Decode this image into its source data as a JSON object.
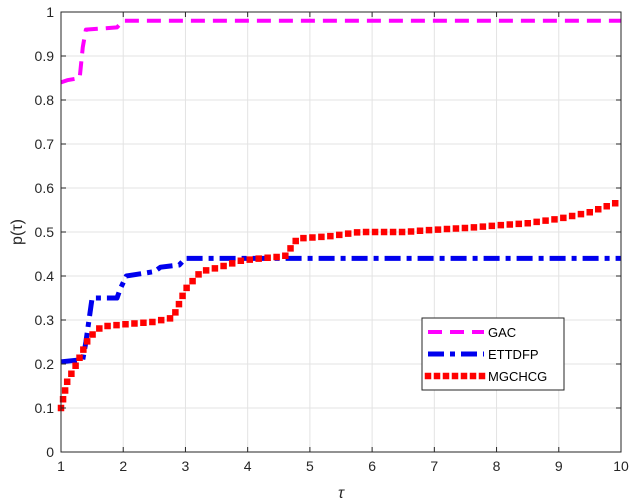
{
  "chart_data": {
    "type": "line",
    "xlabel": "τ",
    "ylabel": "p(τ)",
    "xlim": [
      1,
      10
    ],
    "ylim": [
      0,
      1
    ],
    "xticks": [
      1,
      2,
      3,
      4,
      5,
      6,
      7,
      8,
      9,
      10
    ],
    "yticks": [
      0,
      0.1,
      0.2,
      0.3,
      0.4,
      0.5,
      0.6,
      0.7,
      0.8,
      0.9,
      1
    ],
    "grid": true,
    "legend_position": "lower-right",
    "series": [
      {
        "name": "GAC",
        "color": "#ff00ff",
        "style": "dashed",
        "x": [
          1.0,
          1.1,
          1.3,
          1.35,
          1.4,
          1.9,
          2.0,
          10.0
        ],
        "y": [
          0.84,
          0.845,
          0.85,
          0.92,
          0.96,
          0.965,
          0.98,
          0.98
        ]
      },
      {
        "name": "ETTDFP",
        "color": "#0000ee",
        "style": "dashdot",
        "x": [
          1.0,
          1.35,
          1.4,
          1.5,
          1.9,
          1.95,
          2.05,
          2.5,
          2.6,
          2.9,
          3.0,
          10.0
        ],
        "y": [
          0.205,
          0.21,
          0.25,
          0.35,
          0.35,
          0.37,
          0.4,
          0.41,
          0.42,
          0.425,
          0.44,
          0.44
        ]
      },
      {
        "name": "MGCHCG",
        "color": "#ff0000",
        "style": "dotted",
        "x": [
          1.0,
          1.1,
          1.25,
          1.45,
          1.65,
          2.0,
          2.45,
          2.8,
          3.0,
          3.25,
          3.55,
          3.9,
          4.2,
          4.6,
          4.8,
          5.3,
          5.8,
          6.5,
          7.0,
          7.6,
          8.0,
          8.5,
          9.0,
          9.5,
          10.0
        ],
        "y": [
          0.1,
          0.16,
          0.2,
          0.26,
          0.285,
          0.29,
          0.295,
          0.305,
          0.37,
          0.41,
          0.42,
          0.435,
          0.44,
          0.445,
          0.485,
          0.49,
          0.5,
          0.5,
          0.505,
          0.51,
          0.515,
          0.52,
          0.53,
          0.545,
          0.57
        ]
      }
    ]
  }
}
